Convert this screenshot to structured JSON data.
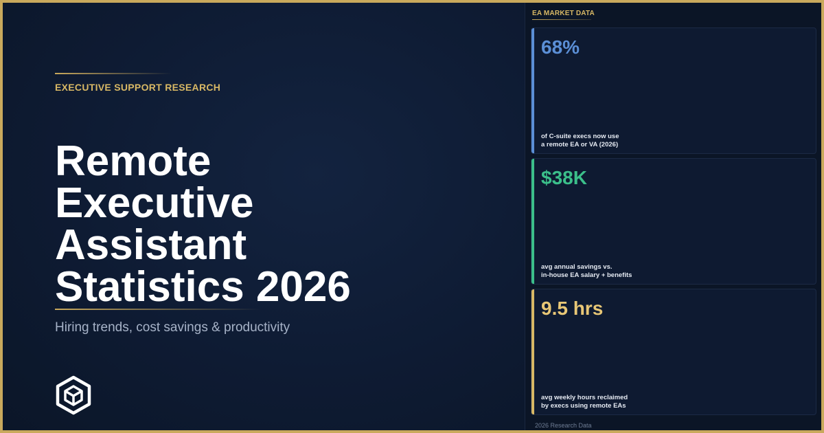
{
  "hero": {
    "eyebrow": "EXECUTIVE SUPPORT RESEARCH",
    "title_lines": [
      "Remote",
      "Executive",
      "Assistant",
      "Statistics 2026"
    ],
    "subtitle": "Hiring trends, cost savings & productivity",
    "logo_icon": "hexagon-cube-logo-icon"
  },
  "panel": {
    "label": "EA MARKET DATA",
    "cards": [
      {
        "value": "68%",
        "desc_lines": [
          "of C-suite execs now use",
          "a remote EA or VA (2026)"
        ],
        "accent": "#5b8fd6"
      },
      {
        "value": "$38K",
        "desc_lines": [
          "avg annual savings vs.",
          "in-house EA salary + benefits"
        ],
        "accent": "#3bbf8a"
      },
      {
        "value": "9.5 hrs",
        "desc_lines": [
          "avg weekly hours reclaimed",
          "by execs using remote EAs"
        ],
        "accent": "#d8b865"
      }
    ],
    "footnote": "2026 Research Data"
  },
  "colors": {
    "gold": "#c9a95c",
    "background": "#0d1a30",
    "text": "#ffffff"
  }
}
